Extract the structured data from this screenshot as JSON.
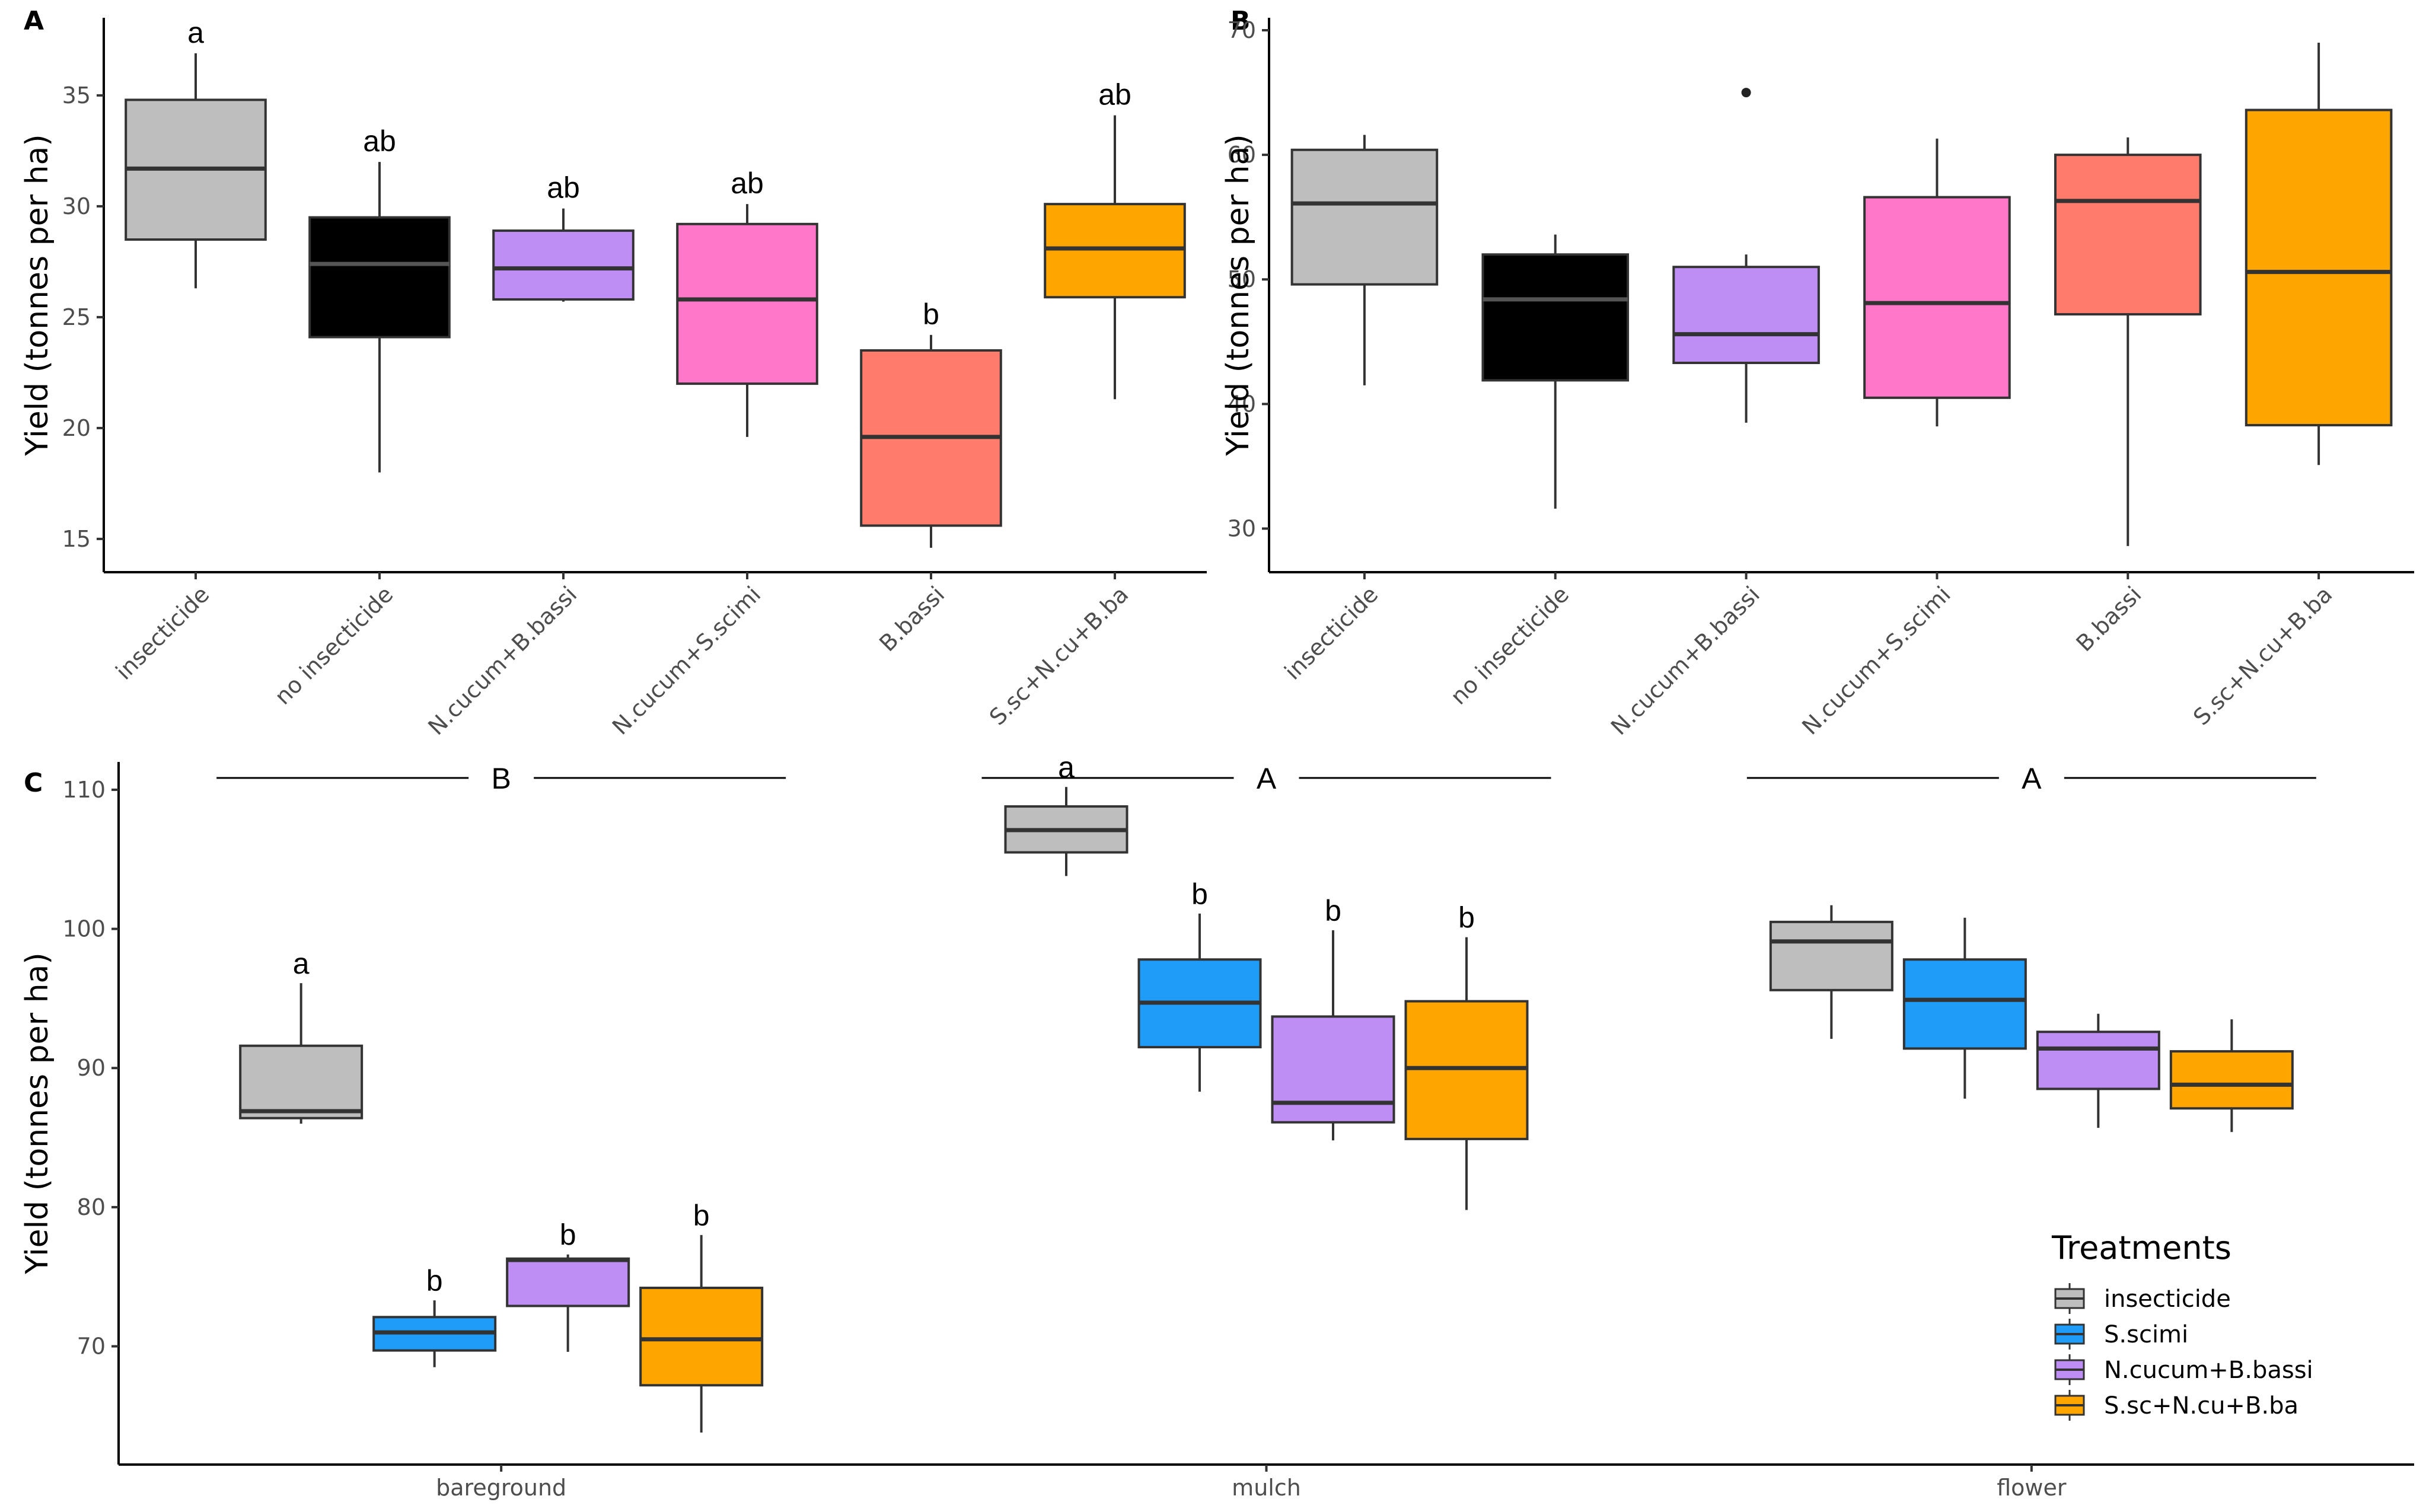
{
  "chart_data": [
    {
      "panel": "A",
      "type": "box",
      "ylabel": "Yield (tonnes per ha)",
      "ylim": [
        13.5,
        38.5
      ],
      "yticks": [
        15,
        20,
        25,
        30,
        35
      ],
      "categories": [
        "insecticide",
        "no insecticide",
        "N.cucum+B.bassi",
        "N.cucum+S.scimi",
        "B.bassi",
        "S.sc+N.cu+B.ba"
      ],
      "colors": [
        "#bebebe",
        "#000000",
        "#bf8ef5",
        "#ff77c8",
        "#ff7b6b",
        "#ffa500"
      ],
      "boxes": [
        {
          "min": 26.3,
          "q1": 28.5,
          "median": 31.7,
          "q3": 34.8,
          "max": 36.9
        },
        {
          "min": 18.0,
          "q1": 24.1,
          "median": 27.4,
          "q3": 29.5,
          "max": 32.0
        },
        {
          "min": 25.7,
          "q1": 25.8,
          "median": 27.2,
          "q3": 28.9,
          "max": 29.9
        },
        {
          "min": 19.6,
          "q1": 22.0,
          "median": 25.8,
          "q3": 29.2,
          "max": 30.1
        },
        {
          "min": 14.6,
          "q1": 15.6,
          "median": 19.6,
          "q3": 23.5,
          "max": 24.2
        },
        {
          "min": 21.3,
          "q1": 25.9,
          "median": 28.1,
          "q3": 30.1,
          "max": 34.1
        }
      ],
      "letters": [
        "a",
        "ab",
        "ab",
        "ab",
        "b",
        "ab"
      ]
    },
    {
      "panel": "B",
      "type": "box",
      "ylabel": "Yield (tonnes per ha)",
      "ylim": [
        26.5,
        71
      ],
      "yticks": [
        30,
        40,
        50,
        60,
        70
      ],
      "categories": [
        "insecticide",
        "no insecticide",
        "N.cucum+B.bassi",
        "N.cucum+S.scimi",
        "B.bassi",
        "S.sc+N.cu+B.ba"
      ],
      "colors": [
        "#bebebe",
        "#000000",
        "#bf8ef5",
        "#ff77c8",
        "#ff7b6b",
        "#ffa500"
      ],
      "boxes": [
        {
          "min": 41.5,
          "q1": 49.6,
          "median": 56.1,
          "q3": 60.4,
          "max": 61.6
        },
        {
          "min": 31.6,
          "q1": 41.9,
          "median": 48.4,
          "q3": 52.0,
          "max": 53.6
        },
        {
          "min": 38.5,
          "q1": 43.3,
          "median": 45.6,
          "q3": 51.0,
          "max": 52.0,
          "outliers": [
            65.0
          ]
        },
        {
          "min": 38.2,
          "q1": 40.5,
          "median": 48.1,
          "q3": 56.6,
          "max": 61.3
        },
        {
          "min": 28.6,
          "q1": 47.2,
          "median": 56.3,
          "q3": 60.0,
          "max": 61.4
        },
        {
          "min": 35.1,
          "q1": 38.3,
          "median": 50.6,
          "q3": 63.6,
          "max": 69.0
        }
      ]
    },
    {
      "panel": "C",
      "type": "box",
      "ylabel": "Yield (tonnes per ha)",
      "ylim": [
        61.5,
        112
      ],
      "yticks": [
        70,
        80,
        90,
        100,
        110
      ],
      "groups": [
        "bareground",
        "mulch",
        "flower"
      ],
      "group_letters": [
        "B",
        "A",
        "A"
      ],
      "legend_title": "Treatments",
      "series": [
        {
          "name": "insecticide",
          "color": "#bebebe"
        },
        {
          "name": "S.scimi",
          "color": "#1e9cf7"
        },
        {
          "name": "N.cucum+B.bassi",
          "color": "#bf8ef5"
        },
        {
          "name": "S.sc+N.cu+B.ba",
          "color": "#ffa500"
        }
      ],
      "boxes": [
        [
          {
            "min": 86.0,
            "q1": 86.4,
            "median": 86.9,
            "q3": 91.6,
            "max": 96.1,
            "letter": "a"
          },
          {
            "min": 68.5,
            "q1": 69.7,
            "median": 71.0,
            "q3": 72.1,
            "max": 73.3,
            "letter": "b"
          },
          {
            "min": 69.6,
            "q1": 72.9,
            "median": 76.2,
            "q3": 76.3,
            "max": 76.6,
            "letter": "b"
          },
          {
            "min": 63.8,
            "q1": 67.2,
            "median": 70.5,
            "q3": 74.2,
            "max": 78.0,
            "letter": "b"
          }
        ],
        [
          {
            "min": 103.8,
            "q1": 105.5,
            "median": 107.1,
            "q3": 108.8,
            "max": 110.2,
            "letter": "a"
          },
          {
            "min": 88.3,
            "q1": 91.5,
            "median": 94.7,
            "q3": 97.8,
            "max": 101.1,
            "letter": "b"
          },
          {
            "min": 84.8,
            "q1": 86.1,
            "median": 87.5,
            "q3": 93.7,
            "max": 99.9,
            "letter": "b"
          },
          {
            "min": 79.8,
            "q1": 84.9,
            "median": 90.0,
            "q3": 94.8,
            "max": 99.4,
            "letter": "b"
          }
        ],
        [
          {
            "min": 92.1,
            "q1": 95.6,
            "median": 99.1,
            "q3": 100.5,
            "max": 101.7
          },
          {
            "min": 87.8,
            "q1": 91.4,
            "median": 94.9,
            "q3": 97.8,
            "max": 100.8
          },
          {
            "min": 85.7,
            "q1": 88.5,
            "median": 91.4,
            "q3": 92.6,
            "max": 93.9
          },
          {
            "min": 85.4,
            "q1": 87.1,
            "median": 88.8,
            "q3": 91.2,
            "max": 93.5
          }
        ]
      ]
    }
  ]
}
